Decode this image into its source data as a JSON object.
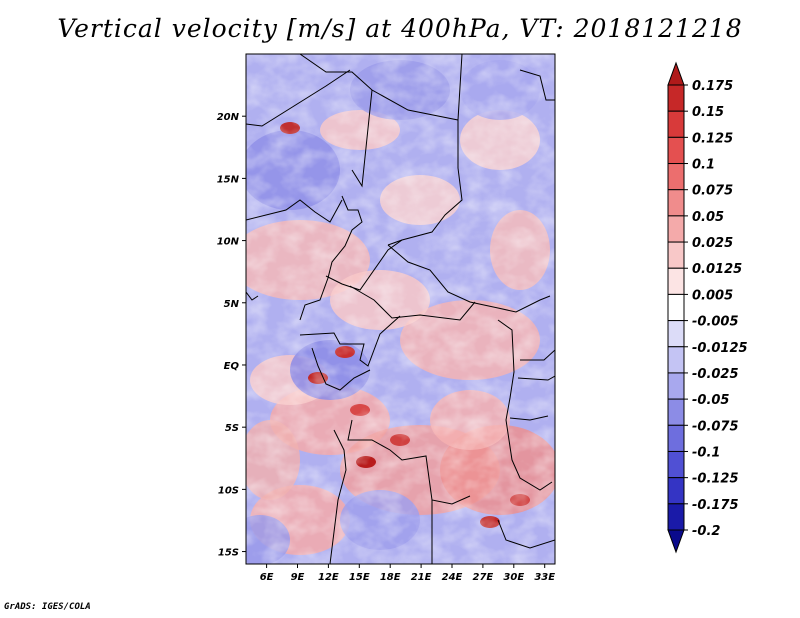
{
  "title": "Vertical velocity [m/s] at 400hPa, VT: 2018121218",
  "footer": "GrADS: IGES/COLA",
  "map": {
    "lon_range": [
      4,
      34
    ],
    "lat_range": [
      -16,
      25
    ],
    "lon_ticks": [
      "6E",
      "9E",
      "12E",
      "15E",
      "18E",
      "21E",
      "24E",
      "27E",
      "30E",
      "33E"
    ],
    "lat_ticks": [
      "20N",
      "15N",
      "10N",
      "5N",
      "EQ",
      "5S",
      "10S",
      "15S"
    ]
  },
  "colorbar": {
    "levels": [
      "0.175",
      "0.15",
      "0.125",
      "0.1",
      "0.075",
      "0.05",
      "0.025",
      "0.0125",
      "0.005",
      "-0.005",
      "-0.0125",
      "-0.025",
      "-0.05",
      "-0.075",
      "-0.1",
      "-0.125",
      "-0.175",
      "-0.2"
    ],
    "colors": [
      "#b01a1a",
      "#c62828",
      "#d83a3a",
      "#e45050",
      "#ec6e6e",
      "#f08c8c",
      "#f4aaaa",
      "#f8c8c8",
      "#fce4e4",
      "#ffffff",
      "#dcdcf8",
      "#c4c4f4",
      "#a8a8ee",
      "#8c8ce6",
      "#6e6ede",
      "#5050d4",
      "#3434c4",
      "#1a1aa8",
      "#0a0a8c"
    ]
  }
}
